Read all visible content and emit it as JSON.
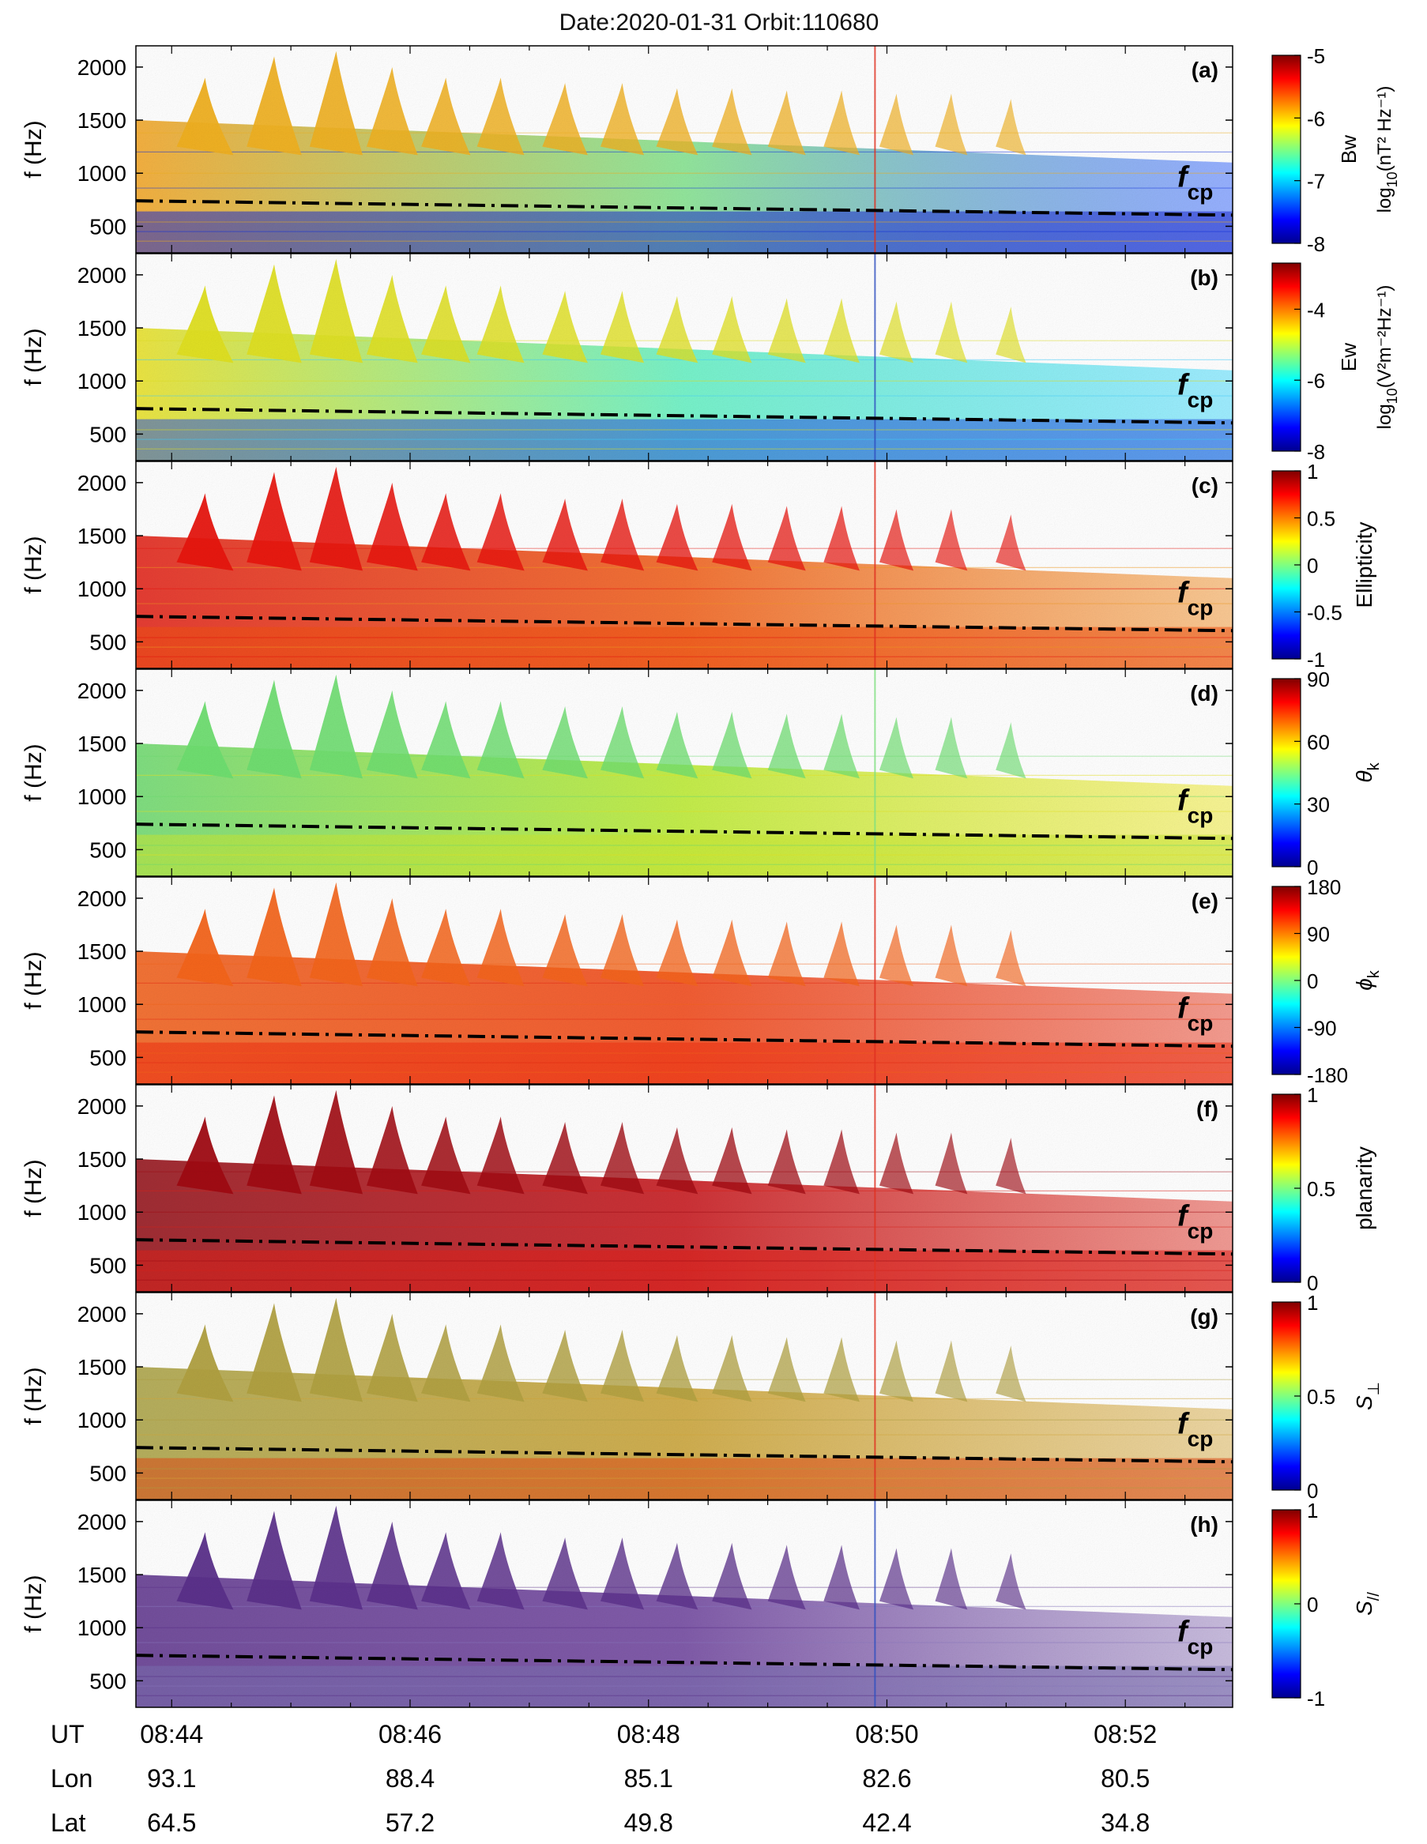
{
  "figure": {
    "title": "Date:2020-01-31   Orbit:110680",
    "date": "2020-01-31",
    "orbit": "110680"
  },
  "chart_data": {
    "type": "heatmap",
    "title": "Date:2020-01-31   Orbit:110680",
    "xlabel": "UT",
    "ylabel": "f (Hz)",
    "ylim": [
      250,
      2200
    ],
    "yticks": [
      500,
      1000,
      1500,
      2000
    ],
    "x_range_minutes": [
      -0.3,
      8.9
    ],
    "xticks": [
      {
        "min": 0,
        "label": "08:44"
      },
      {
        "min": 2,
        "label": "08:46"
      },
      {
        "min": 4,
        "label": "08:48"
      },
      {
        "min": 6,
        "label": "08:50"
      },
      {
        "min": 8,
        "label": "08:52"
      }
    ],
    "orbit_rows": [
      {
        "name": "UT",
        "values": [
          "08:44",
          "08:46",
          "08:48",
          "08:50",
          "08:52"
        ]
      },
      {
        "name": "Lon",
        "values": [
          "93.1",
          "88.4",
          "85.1",
          "82.6",
          "80.5"
        ]
      },
      {
        "name": "Lat",
        "values": [
          "64.5",
          "57.2",
          "49.8",
          "42.4",
          "34.8"
        ]
      }
    ],
    "fcp_line": {
      "label_main": "f",
      "label_sub": "cp",
      "start_hz": 740,
      "end_hz": 605
    },
    "burst_times_min": [
      0.28,
      0.86,
      1.38,
      1.85,
      2.3,
      2.76,
      3.3,
      3.78,
      4.24,
      4.7,
      5.16,
      5.62,
      6.08,
      6.54,
      7.04
    ],
    "burst_peaks_hz": [
      1900,
      2100,
      2150,
      2000,
      1900,
      1900,
      1850,
      1850,
      1800,
      1800,
      1780,
      1780,
      1750,
      1750,
      1700
    ],
    "event_line_min": 5.9,
    "panels": [
      {
        "letter": "(a)",
        "quantity": "Bw",
        "cb_label": "Bw",
        "cb_unit_base": "log",
        "cb_unit_sub": "10",
        "cb_unit_rest": "(nT² Hz⁻¹)",
        "cmin": -8,
        "cmax": -5,
        "ticks": [
          "-5",
          "-6",
          "-7",
          "-8"
        ],
        "tick_values": [
          -5,
          -6,
          -7,
          -8
        ]
      },
      {
        "letter": "(b)",
        "quantity": "Ew",
        "cb_label": "Ew",
        "cb_unit_base": "log",
        "cb_unit_sub": "10",
        "cb_unit_rest": "(V²m⁻²Hz⁻¹)",
        "cmin": -8,
        "cmax": -2.7,
        "ticks": [
          "-4",
          "-6",
          "-8"
        ],
        "tick_values": [
          -4,
          -6,
          -8
        ]
      },
      {
        "letter": "(c)",
        "quantity": "Ellipticity",
        "cb_label": "Ellipticity",
        "cmin": -1,
        "cmax": 1,
        "ticks": [
          "1",
          "0.5",
          "0",
          "-0.5",
          "-1"
        ],
        "tick_values": [
          1,
          0.5,
          0,
          -0.5,
          -1
        ]
      },
      {
        "letter": "(d)",
        "quantity": "theta_k",
        "cb_label": "θ",
        "cb_label_sub": "k",
        "cmin": 0,
        "cmax": 90,
        "ticks": [
          "90",
          "60",
          "30",
          "0"
        ],
        "tick_values": [
          90,
          60,
          30,
          0
        ]
      },
      {
        "letter": "(e)",
        "quantity": "phi_k",
        "cb_label": "ϕ",
        "cb_label_sub": "k",
        "cmin": -180,
        "cmax": 180,
        "ticks": [
          "180",
          "90",
          "0",
          "-90",
          "-180"
        ],
        "tick_values": [
          180,
          90,
          0,
          -90,
          -180
        ]
      },
      {
        "letter": "(f)",
        "quantity": "planarity",
        "cb_label": "planarity",
        "cmin": 0,
        "cmax": 1,
        "ticks": [
          "1",
          "0.5",
          "0"
        ],
        "tick_values": [
          1,
          0.5,
          0
        ]
      },
      {
        "letter": "(g)",
        "quantity": "S_perp",
        "cb_label": "S",
        "cb_label_sub": "⊥",
        "cmin": 0,
        "cmax": 1,
        "ticks": [
          "1",
          "0.5",
          "0"
        ],
        "tick_values": [
          1,
          0.5,
          0
        ]
      },
      {
        "letter": "(h)",
        "quantity": "S_par",
        "cb_label": "S",
        "cb_label_sub": "//",
        "cmin": -1,
        "cmax": 1,
        "ticks": [
          "1",
          "0",
          "-1"
        ],
        "tick_values": [
          1,
          0,
          -1
        ]
      }
    ]
  }
}
